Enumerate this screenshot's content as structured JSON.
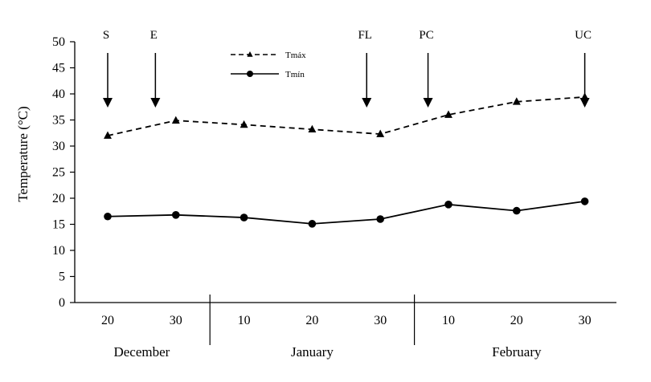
{
  "chart_data": {
    "type": "line",
    "title": "",
    "xlabel": "",
    "ylabel": "Temperature (°C)",
    "ylim": [
      0,
      50
    ],
    "yticks": [
      0,
      5,
      10,
      15,
      20,
      25,
      30,
      35,
      40,
      45,
      50
    ],
    "categories": [
      "20",
      "30",
      "10",
      "20",
      "30",
      "10",
      "20",
      "30"
    ],
    "month_groups": [
      {
        "label": "December",
        "span": [
          0,
          1
        ]
      },
      {
        "label": "January",
        "span": [
          2,
          4
        ]
      },
      {
        "label": "February",
        "span": [
          5,
          7
        ]
      }
    ],
    "series": [
      {
        "name": "Tmáx",
        "style": "dashed",
        "marker": "triangle",
        "values": [
          32.0,
          34.9,
          34.1,
          33.2,
          32.3,
          36.0,
          38.5,
          39.4
        ]
      },
      {
        "name": "Tmín",
        "style": "solid",
        "marker": "circle",
        "values": [
          16.5,
          16.8,
          16.3,
          15.1,
          16.0,
          18.8,
          17.6,
          19.4
        ]
      }
    ],
    "annotations": [
      {
        "label": "S",
        "index": 0.0
      },
      {
        "label": "E",
        "index": 0.7
      },
      {
        "label": "FL",
        "index": 3.8
      },
      {
        "label": "PC",
        "index": 4.7
      },
      {
        "label": "UC",
        "index": 7.0
      }
    ],
    "grid": false,
    "legend_position": "top-left",
    "colors": {
      "line": "#000000"
    }
  }
}
